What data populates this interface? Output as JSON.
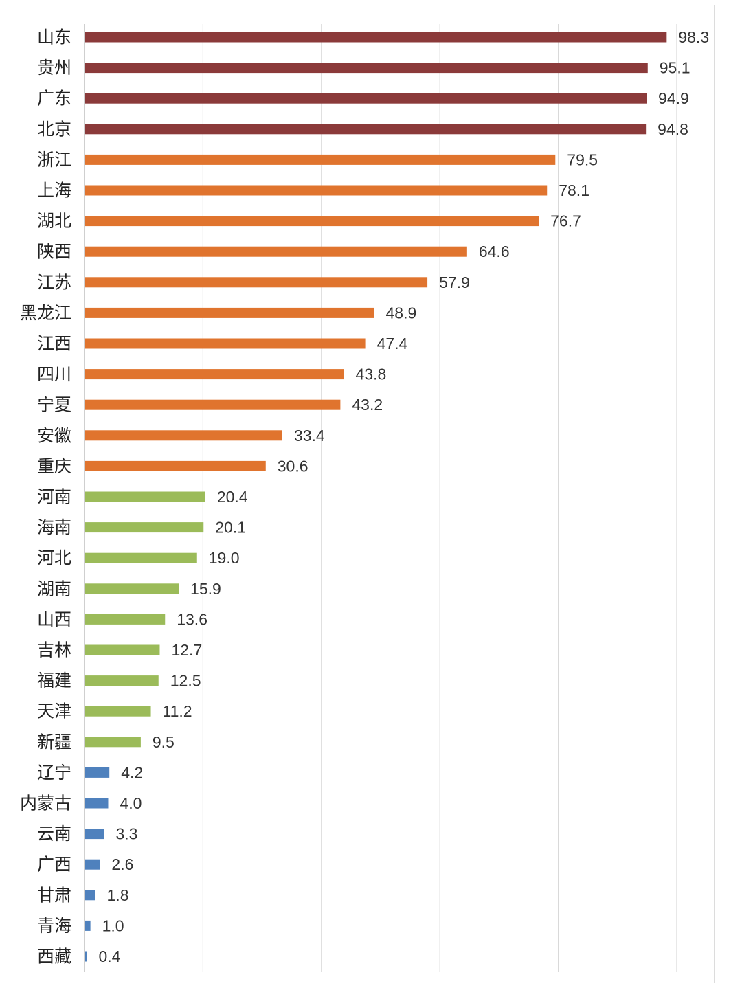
{
  "chart_data": {
    "type": "bar",
    "orientation": "horizontal",
    "title": "",
    "xlabel": "",
    "ylabel": "",
    "xlim": [
      0,
      100
    ],
    "grid": "vertical",
    "gridlines": [
      0,
      20,
      40,
      60,
      80,
      100
    ],
    "categories": [
      "山东",
      "贵州",
      "广东",
      "北京",
      "浙江",
      "上海",
      "湖北",
      "陕西",
      "江苏",
      "黑龙江",
      "江西",
      "四川",
      "宁夏",
      "安徽",
      "重庆",
      "河南",
      "海南",
      "河北",
      "湖南",
      "山西",
      "吉林",
      "福建",
      "天津",
      "新疆",
      "辽宁",
      "内蒙古",
      "云南",
      "广西",
      "甘肃",
      "青海",
      "西藏"
    ],
    "values": [
      98.3,
      95.1,
      94.9,
      94.8,
      79.5,
      78.1,
      76.7,
      64.6,
      57.9,
      48.9,
      47.4,
      43.8,
      43.2,
      33.4,
      30.6,
      20.4,
      20.1,
      19.0,
      15.9,
      13.6,
      12.7,
      12.5,
      11.2,
      9.5,
      4.2,
      4.0,
      3.3,
      2.6,
      1.8,
      1.0,
      0.4
    ],
    "value_labels": [
      "98.3",
      "95.1",
      "94.9",
      "94.8",
      "79.5",
      "78.1",
      "76.7",
      "64.6",
      "57.9",
      "48.9",
      "47.4",
      "43.8",
      "43.2",
      "33.4",
      "30.6",
      "20.4",
      "20.1",
      "19.0",
      "15.9",
      "13.6",
      "12.7",
      "12.5",
      "11.2",
      "9.5",
      "4.2",
      "4.0",
      "3.3",
      "2.6",
      "1.8",
      "1.0",
      "0.4"
    ],
    "tiers": [
      "top",
      "top",
      "top",
      "top",
      "high",
      "high",
      "high",
      "high",
      "high",
      "high",
      "high",
      "high",
      "high",
      "high",
      "high",
      "mid",
      "mid",
      "mid",
      "mid",
      "mid",
      "mid",
      "mid",
      "mid",
      "mid",
      "low",
      "low",
      "low",
      "low",
      "low",
      "low",
      "low"
    ],
    "tier_colors": {
      "top": "#8B3A3A",
      "high": "#E0742E",
      "mid": "#9BBB59",
      "low": "#4F81BD"
    }
  }
}
